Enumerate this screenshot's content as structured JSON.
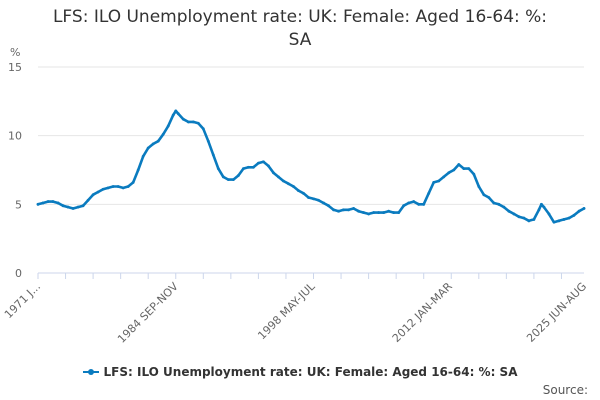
{
  "colors": {
    "series": "#0a7bbf",
    "grid": "#e6e6e6",
    "axis": "#ccd6eb",
    "text": "#333333",
    "tick_text": "#666666"
  },
  "chart_data": {
    "type": "line",
    "title_line1": "LFS: ILO Unemployment rate: UK: Female: Aged 16-64: %:",
    "title_line2": "SA",
    "ylabel": "%",
    "ylim": [
      0,
      15
    ],
    "yticks": [
      0,
      5,
      10,
      15
    ],
    "xlim": [
      1971.0,
      2025.5
    ],
    "grid": true,
    "legend_position": "bottom-center",
    "xticks": [
      {
        "x": 1971.0,
        "label": "1971 J..."
      },
      {
        "x": 1984.75,
        "label": "1984 SEP-NOV"
      },
      {
        "x": 1998.4,
        "label": "1998 MAY-JUL"
      },
      {
        "x": 2012.1,
        "label": "2012 JAN-MAR"
      },
      {
        "x": 2025.5,
        "label": "2025 JUN-AUG"
      }
    ],
    "series": [
      {
        "name": "LFS: ILO Unemployment rate: UK: Female: Aged 16-64: %: SA",
        "points": [
          [
            1971.0,
            5.0
          ],
          [
            1971.5,
            5.1
          ],
          [
            1972.0,
            5.2
          ],
          [
            1972.5,
            5.2
          ],
          [
            1973.0,
            5.1
          ],
          [
            1973.5,
            4.9
          ],
          [
            1974.0,
            4.8
          ],
          [
            1974.5,
            4.7
          ],
          [
            1975.0,
            4.8
          ],
          [
            1975.5,
            4.9
          ],
          [
            1976.0,
            5.3
          ],
          [
            1976.5,
            5.7
          ],
          [
            1977.0,
            5.9
          ],
          [
            1977.5,
            6.1
          ],
          [
            1978.0,
            6.2
          ],
          [
            1978.5,
            6.3
          ],
          [
            1979.0,
            6.3
          ],
          [
            1979.5,
            6.2
          ],
          [
            1980.0,
            6.3
          ],
          [
            1980.5,
            6.6
          ],
          [
            1981.0,
            7.5
          ],
          [
            1981.5,
            8.5
          ],
          [
            1982.0,
            9.1
          ],
          [
            1982.5,
            9.4
          ],
          [
            1983.0,
            9.6
          ],
          [
            1983.5,
            10.1
          ],
          [
            1984.0,
            10.7
          ],
          [
            1984.5,
            11.5
          ],
          [
            1984.75,
            11.8
          ],
          [
            1985.0,
            11.6
          ],
          [
            1985.5,
            11.2
          ],
          [
            1986.0,
            11.0
          ],
          [
            1986.5,
            11.0
          ],
          [
            1987.0,
            10.9
          ],
          [
            1987.5,
            10.5
          ],
          [
            1988.0,
            9.6
          ],
          [
            1988.5,
            8.6
          ],
          [
            1989.0,
            7.6
          ],
          [
            1989.5,
            7.0
          ],
          [
            1990.0,
            6.8
          ],
          [
            1990.5,
            6.8
          ],
          [
            1991.0,
            7.1
          ],
          [
            1991.5,
            7.6
          ],
          [
            1992.0,
            7.7
          ],
          [
            1992.5,
            7.7
          ],
          [
            1993.0,
            8.0
          ],
          [
            1993.5,
            8.1
          ],
          [
            1994.0,
            7.8
          ],
          [
            1994.5,
            7.3
          ],
          [
            1995.0,
            7.0
          ],
          [
            1995.5,
            6.7
          ],
          [
            1996.0,
            6.5
          ],
          [
            1996.5,
            6.3
          ],
          [
            1997.0,
            6.0
          ],
          [
            1997.5,
            5.8
          ],
          [
            1998.0,
            5.5
          ],
          [
            1998.5,
            5.4
          ],
          [
            1999.0,
            5.3
          ],
          [
            1999.5,
            5.1
          ],
          [
            2000.0,
            4.9
          ],
          [
            2000.5,
            4.6
          ],
          [
            2001.0,
            4.5
          ],
          [
            2001.5,
            4.6
          ],
          [
            2002.0,
            4.6
          ],
          [
            2002.5,
            4.7
          ],
          [
            2003.0,
            4.5
          ],
          [
            2003.5,
            4.4
          ],
          [
            2004.0,
            4.3
          ],
          [
            2004.5,
            4.4
          ],
          [
            2005.0,
            4.4
          ],
          [
            2005.5,
            4.4
          ],
          [
            2006.0,
            4.5
          ],
          [
            2006.5,
            4.4
          ],
          [
            2007.0,
            4.4
          ],
          [
            2007.5,
            4.9
          ],
          [
            2008.0,
            5.1
          ],
          [
            2008.5,
            5.2
          ],
          [
            2009.0,
            5.0
          ],
          [
            2009.5,
            5.0
          ],
          [
            2010.0,
            5.8
          ],
          [
            2010.5,
            6.6
          ],
          [
            2011.0,
            6.7
          ],
          [
            2011.5,
            7.0
          ],
          [
            2012.0,
            7.3
          ],
          [
            2012.5,
            7.5
          ],
          [
            2013.0,
            7.9
          ],
          [
            2013.5,
            7.6
          ],
          [
            2014.0,
            7.6
          ],
          [
            2014.5,
            7.2
          ],
          [
            2015.0,
            6.3
          ],
          [
            2015.5,
            5.7
          ],
          [
            2016.0,
            5.5
          ],
          [
            2016.5,
            5.1
          ],
          [
            2017.0,
            5.0
          ],
          [
            2017.5,
            4.8
          ],
          [
            2018.0,
            4.5
          ],
          [
            2018.5,
            4.3
          ],
          [
            2019.0,
            4.1
          ],
          [
            2019.5,
            4.0
          ],
          [
            2020.0,
            3.8
          ],
          [
            2020.5,
            3.9
          ],
          [
            2021.0,
            4.6
          ],
          [
            2021.25,
            5.0
          ],
          [
            2021.5,
            4.8
          ],
          [
            2022.0,
            4.3
          ],
          [
            2022.5,
            3.7
          ],
          [
            2023.0,
            3.8
          ],
          [
            2023.5,
            3.9
          ],
          [
            2024.0,
            4.0
          ],
          [
            2024.5,
            4.2
          ],
          [
            2025.0,
            4.5
          ],
          [
            2025.5,
            4.7
          ]
        ]
      }
    ]
  },
  "legend": {
    "label": "LFS: ILO Unemployment rate: UK: Female: Aged 16-64: %: SA"
  },
  "source": {
    "label": "Source:"
  }
}
